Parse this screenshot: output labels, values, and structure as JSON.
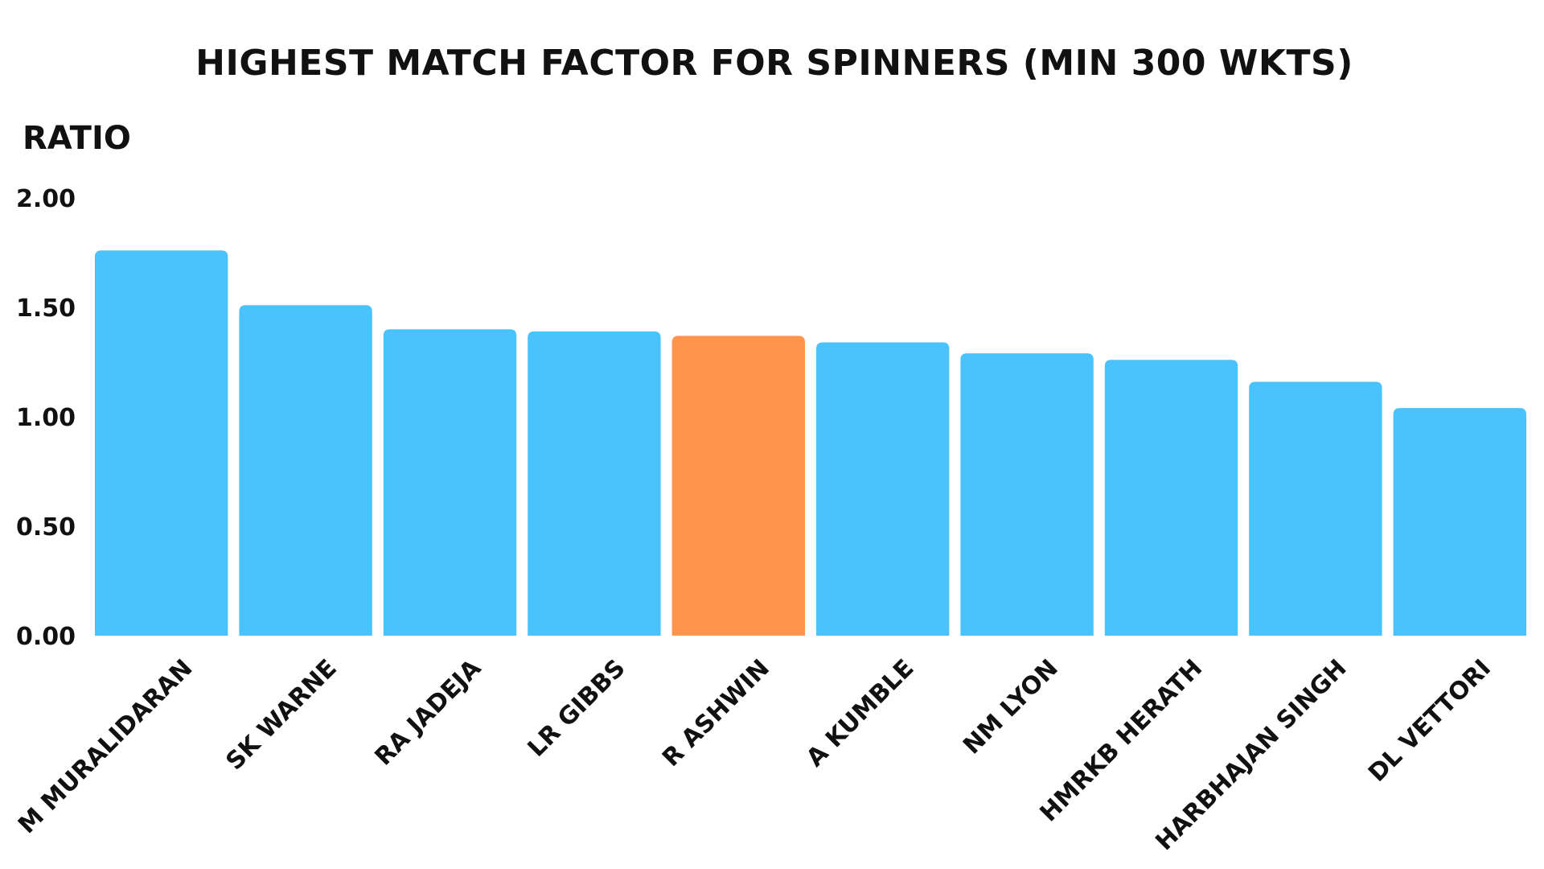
{
  "chart_data": {
    "type": "bar",
    "title": "HIGHEST MATCH FACTOR FOR SPINNERS (MIN 300 WKTS)",
    "xlabel": "",
    "ylabel": "RATIO",
    "ylim": [
      0,
      2.0
    ],
    "yticks": [
      "0.00",
      "0.50",
      "1.00",
      "1.50",
      "2.00"
    ],
    "ytick_values": [
      0,
      0.5,
      1.0,
      1.5,
      2.0
    ],
    "grid": false,
    "categories": [
      "M MURALIDARAN",
      "SK WARNE",
      "RA JADEJA",
      "LR GIBBS",
      "R ASHWIN",
      "A KUMBLE",
      "NM LYON",
      "HMRKB HERATH",
      "HARBHAJAN SINGH",
      "DL VETTORI"
    ],
    "values": [
      1.76,
      1.51,
      1.4,
      1.39,
      1.37,
      1.34,
      1.29,
      1.26,
      1.16,
      1.04
    ],
    "highlight_index": 4,
    "colors": {
      "bar": "#4ac3fc",
      "highlight": "#ff944d",
      "text": "#111111"
    }
  }
}
